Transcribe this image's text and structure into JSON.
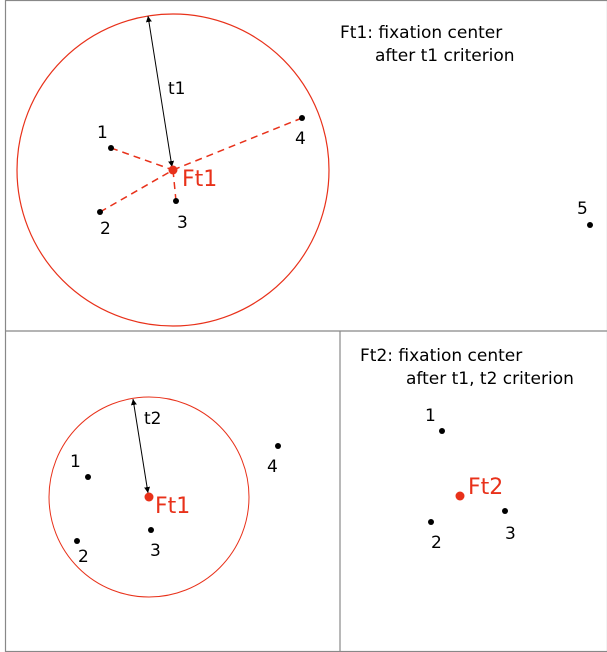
{
  "panels": [
    {
      "caption": [
        "Ft1: fixation center",
        "after t1 criterion"
      ],
      "radius_label": "t1",
      "center_label": "Ft1",
      "points": [
        "1",
        "2",
        "3",
        "4",
        "5"
      ]
    },
    {
      "radius_label": "t2",
      "center_label": "Ft1",
      "points": [
        "1",
        "2",
        "3",
        "4"
      ]
    },
    {
      "caption": [
        "Ft2: fixation center",
        "after t1, t2 criterion"
      ],
      "center_label": "Ft2",
      "points": [
        "1",
        "2",
        "3"
      ]
    }
  ]
}
